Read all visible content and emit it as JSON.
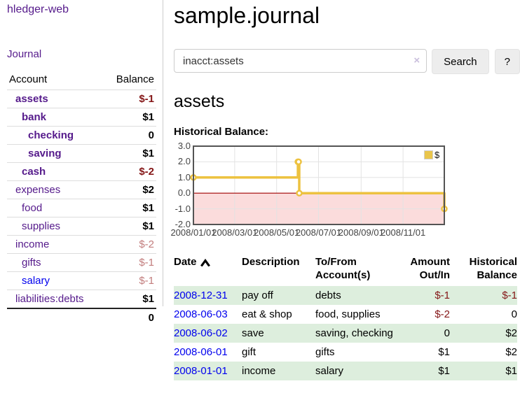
{
  "app": {
    "brand": "hledger-web"
  },
  "sidebar": {
    "nav_journal": "Journal",
    "accounts_header": {
      "account": "Account",
      "balance": "Balance"
    },
    "accounts": [
      {
        "name": "assets",
        "balance": "$-1"
      },
      {
        "name": "bank",
        "balance": "$1"
      },
      {
        "name": "checking",
        "balance": "0"
      },
      {
        "name": "saving",
        "balance": "$1"
      },
      {
        "name": "cash",
        "balance": "$-2"
      },
      {
        "name": "expenses",
        "balance": "$2"
      },
      {
        "name": "food",
        "balance": "$1"
      },
      {
        "name": "supplies",
        "balance": "$1"
      },
      {
        "name": "income",
        "balance": "$-2"
      },
      {
        "name": "gifts",
        "balance": "$-1"
      },
      {
        "name": "salary",
        "balance": "$-1"
      },
      {
        "name": "liabilities:debts",
        "balance": "$1"
      }
    ],
    "total": "0"
  },
  "header": {
    "title": "sample.journal"
  },
  "search": {
    "value": "inacct:assets",
    "clear_label": "×",
    "button_label": "Search",
    "help_label": "?"
  },
  "account_page": {
    "heading": "assets",
    "chart_title": "Historical Balance:"
  },
  "chart_data": {
    "type": "line",
    "title": "Historical Balance:",
    "series": [
      {
        "name": "$",
        "color": "#edc240",
        "step": true,
        "x": [
          "2008/01/01",
          "2008/06/01",
          "2008/06/02",
          "2008/06/03",
          "2008/12/31"
        ],
        "values": [
          1,
          2,
          2,
          0,
          -1
        ]
      }
    ],
    "x_range": [
      "2008/01/01",
      "2008/12/31"
    ],
    "x_ticks": [
      "2008/01/01",
      "2008/03/01",
      "2008/05/01",
      "2008/07/01",
      "2008/09/01",
      "2008/11/01"
    ],
    "y_ticks": [
      "3.0",
      "2.0",
      "1.0",
      "0.0",
      "-1.0",
      "-2.0"
    ],
    "ylim": [
      -2,
      3
    ],
    "grid": true,
    "legend_position": "top-right",
    "negative_fill": "#fbdcdc",
    "zero_line_color": "#a00000"
  },
  "register": {
    "header": {
      "date": "Date",
      "description": "Description",
      "accounts": "To/From Account(s)",
      "amount": "Amount Out/In",
      "balance": "Historical Balance"
    },
    "rows": [
      {
        "date": "2008-12-31",
        "description": "pay off",
        "accounts": "debts",
        "amount": "$-1",
        "balance": "$-1"
      },
      {
        "date": "2008-06-03",
        "description": "eat & shop",
        "accounts": "food, supplies",
        "amount": "$-2",
        "balance": "0"
      },
      {
        "date": "2008-06-02",
        "description": "save",
        "accounts": "saving, checking",
        "amount": "0",
        "balance": "$2"
      },
      {
        "date": "2008-06-01",
        "description": "gift",
        "accounts": "gifts",
        "amount": "$1",
        "balance": "$2"
      },
      {
        "date": "2008-01-01",
        "description": "income",
        "accounts": "salary",
        "amount": "$1",
        "balance": "$1"
      }
    ]
  },
  "colors": {
    "link_purple": "#551a8b",
    "link_blue": "#0000ee",
    "negative": "#841617",
    "negative_soft": "#c27d7d",
    "row_stripe_green": "#ddeedd",
    "chart_line": "#edc240",
    "negative_area_pink": "#fbdcdc"
  }
}
